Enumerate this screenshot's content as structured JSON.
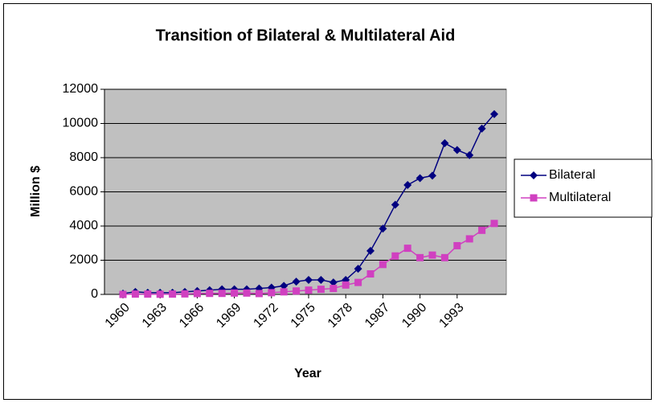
{
  "chart_data": {
    "type": "line",
    "title": "Transition of Bilateral & Multilateral Aid",
    "x_label": "Year",
    "y_label": "Million $",
    "categories": [
      "1960",
      null,
      null,
      "1963",
      null,
      null,
      "1966",
      null,
      null,
      "1969",
      null,
      null,
      "1972",
      null,
      null,
      "1975",
      null,
      null,
      "1978",
      null,
      null,
      "1987",
      null,
      null,
      "1990",
      null,
      null,
      "1993",
      null,
      null,
      null
    ],
    "series": [
      {
        "name": "Bilateral",
        "color": "#000080",
        "marker": "diamond",
        "values": [
          50,
          150,
          100,
          100,
          100,
          150,
          200,
          250,
          300,
          300,
          300,
          350,
          400,
          500,
          750,
          850,
          850,
          700,
          850,
          1500,
          2550,
          3850,
          5250,
          6400,
          6800,
          6950,
          8850,
          8450,
          8150,
          9700,
          10550
        ]
      },
      {
        "name": "Multilateral",
        "color": "#d040c0",
        "marker": "square",
        "values": [
          0,
          20,
          20,
          10,
          20,
          30,
          50,
          60,
          60,
          80,
          80,
          50,
          100,
          150,
          200,
          250,
          300,
          350,
          550,
          700,
          1200,
          1750,
          2250,
          2700,
          2150,
          2300,
          2150,
          2850,
          3250,
          3750,
          4150
        ]
      }
    ],
    "ylim": [
      0,
      12000
    ],
    "yticks": [
      0,
      2000,
      4000,
      6000,
      8000,
      10000,
      12000
    ],
    "grid": true,
    "plot_background": "#c0c0c0",
    "legend": "right"
  }
}
